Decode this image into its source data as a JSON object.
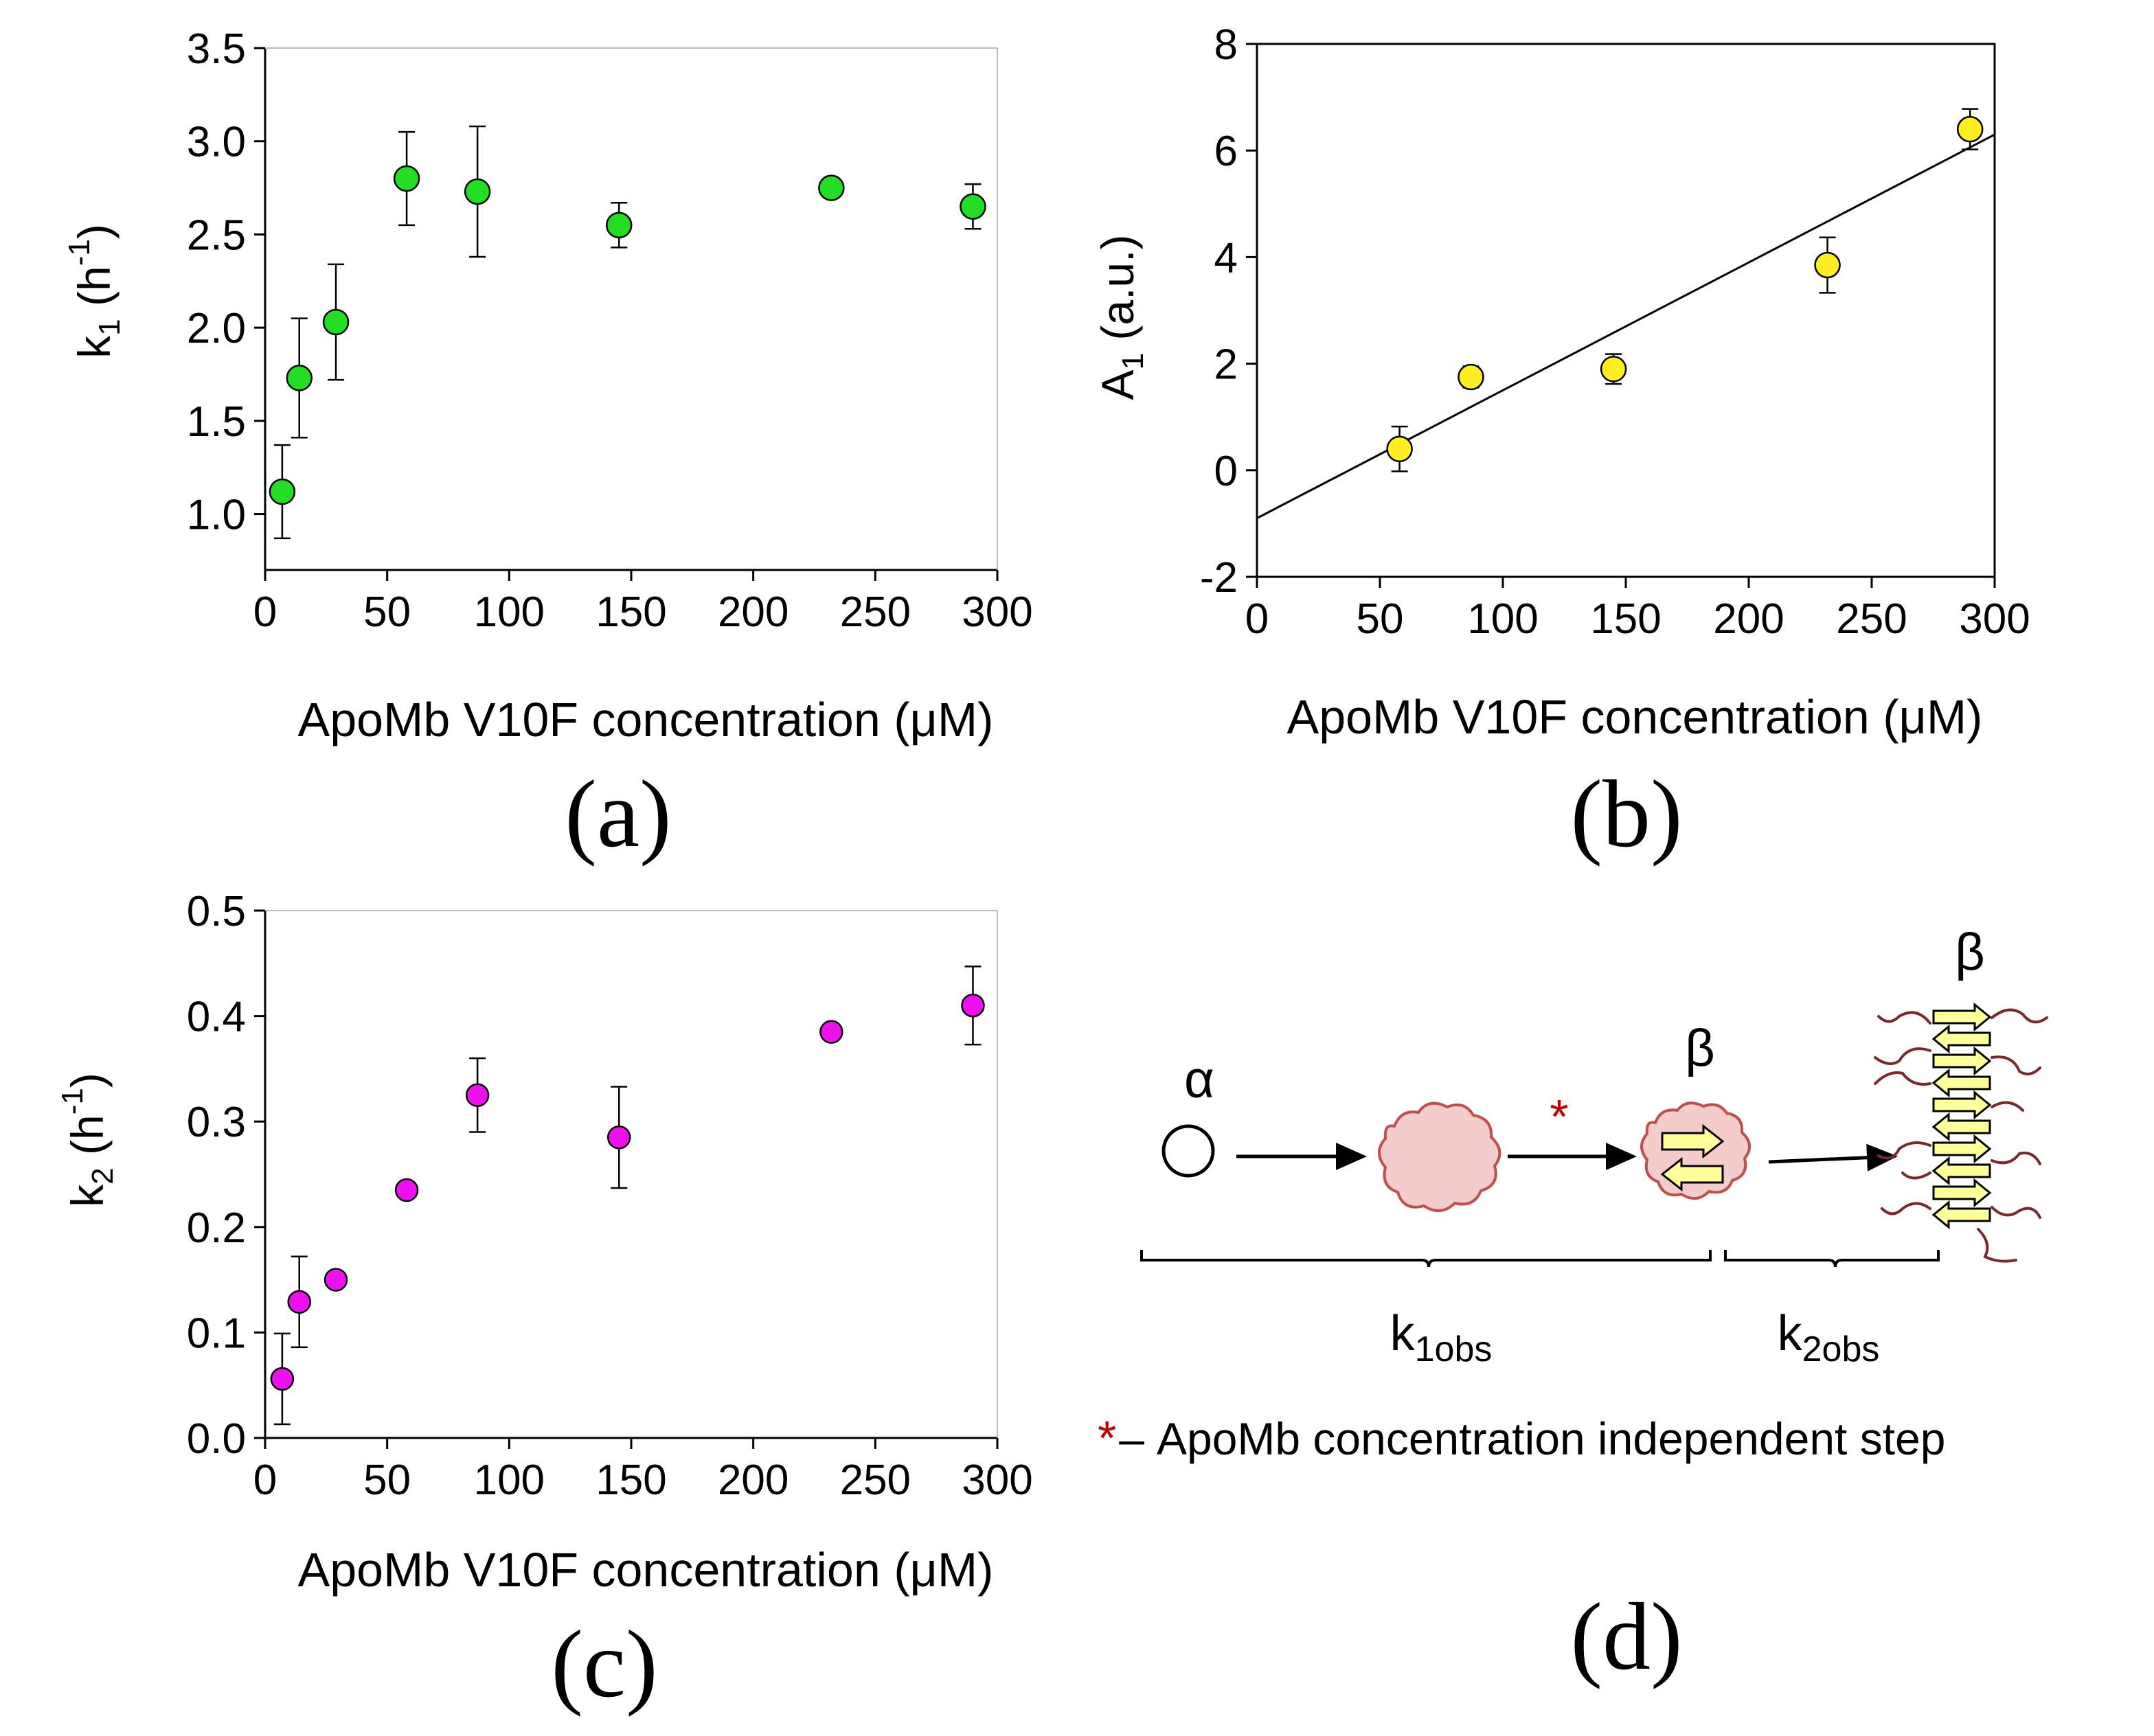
{
  "chart_data": [
    {
      "id": "a",
      "type": "scatter",
      "panel_label": "(a)",
      "ylabel": {
        "base": "k",
        "sub": "1",
        "unit_open": " (h",
        "sup": "-1",
        "unit_close": ")"
      },
      "xlabel": "ApoMb V10F concentration (μM)",
      "xlim": [
        0,
        300
      ],
      "ylim": [
        0.7,
        3.5
      ],
      "xticks": [
        0,
        50,
        100,
        150,
        200,
        250,
        300
      ],
      "yticks": [
        1.0,
        1.5,
        2.0,
        2.5,
        3.0,
        3.5
      ],
      "ytick_labels": [
        "1.0",
        "1.5",
        "2.0",
        "2.5",
        "3.0",
        "3.5"
      ],
      "marker_color": "#22dd22",
      "points": [
        {
          "x": 7,
          "y": 1.12,
          "err": 0.25
        },
        {
          "x": 14,
          "y": 1.73,
          "err": 0.32
        },
        {
          "x": 29,
          "y": 2.03,
          "err": 0.31
        },
        {
          "x": 58,
          "y": 2.8,
          "err": 0.25
        },
        {
          "x": 87,
          "y": 2.73,
          "err": 0.35
        },
        {
          "x": 145,
          "y": 2.55,
          "err": 0.12
        },
        {
          "x": 232,
          "y": 2.75,
          "err": 0
        },
        {
          "x": 290,
          "y": 2.65,
          "err": 0.12
        }
      ]
    },
    {
      "id": "b",
      "type": "scatter",
      "panel_label": "(b)",
      "ylabel": {
        "base": "A",
        "sub": "1",
        "unit_open": " (a.u.)",
        "sup": "",
        "unit_close": ""
      },
      "xlabel": "ApoMb V10F concentration (μM)",
      "xlim": [
        0,
        300
      ],
      "ylim": [
        -2,
        8
      ],
      "xticks": [
        0,
        50,
        100,
        150,
        200,
        250,
        300
      ],
      "yticks": [
        -2,
        0,
        2,
        4,
        6,
        8
      ],
      "ytick_labels": [
        "-2",
        "0",
        "2",
        "4",
        "6",
        "8"
      ],
      "marker_color": "#ffee22",
      "fit_line": {
        "x": [
          0,
          300
        ],
        "y": [
          -0.9,
          6.3
        ]
      },
      "points": [
        {
          "x": 58,
          "y": 0.4,
          "err": 0.42
        },
        {
          "x": 87,
          "y": 1.75,
          "err": 0.2
        },
        {
          "x": 145,
          "y": 1.9,
          "err": 0.28
        },
        {
          "x": 232,
          "y": 3.85,
          "err": 0.52
        },
        {
          "x": 290,
          "y": 6.4,
          "err": 0.38
        }
      ]
    },
    {
      "id": "c",
      "type": "scatter",
      "panel_label": "(c)",
      "ylabel": {
        "base": "k",
        "sub": "2",
        "unit_open": " (h",
        "sup": "-1",
        "unit_close": ")"
      },
      "xlabel": "ApoMb V10F concentration (μM)",
      "xlim": [
        0,
        300
      ],
      "ylim": [
        0,
        0.5
      ],
      "xticks": [
        0,
        50,
        100,
        150,
        200,
        250,
        300
      ],
      "yticks": [
        0,
        0.1,
        0.2,
        0.3,
        0.4,
        0.5
      ],
      "ytick_labels": [
        "0.0",
        "0.1",
        "0.2",
        "0.3",
        "0.4",
        "0.5"
      ],
      "marker_color": "#ee11ee",
      "points": [
        {
          "x": 7,
          "y": 0.056,
          "err": 0.043
        },
        {
          "x": 14,
          "y": 0.129,
          "err": 0.043
        },
        {
          "x": 29,
          "y": 0.15,
          "err": 0
        },
        {
          "x": 58,
          "y": 0.235,
          "err": 0
        },
        {
          "x": 87,
          "y": 0.325,
          "err": 0.035
        },
        {
          "x": 145,
          "y": 0.285,
          "err": 0.048
        },
        {
          "x": 232,
          "y": 0.385,
          "err": 0
        },
        {
          "x": 290,
          "y": 0.41,
          "err": 0.037
        }
      ]
    }
  ],
  "scheme": {
    "panel_label": "(d)",
    "alpha": "α",
    "beta_mid": "β",
    "beta_fibril": "β",
    "star": "*",
    "k1": {
      "base": "k",
      "sub": "1obs"
    },
    "k2": {
      "base": "k",
      "sub": "2obs"
    },
    "legend_star": "*",
    "legend_dash": "–",
    "legend_text": "ApoMb concentration independent step",
    "colors": {
      "star": "#c00000",
      "blob_fill": "#f4cccc",
      "blob_stroke": "#c0504d",
      "arrow_fill": "#ffff99",
      "coil": "#7a2a2a"
    }
  }
}
